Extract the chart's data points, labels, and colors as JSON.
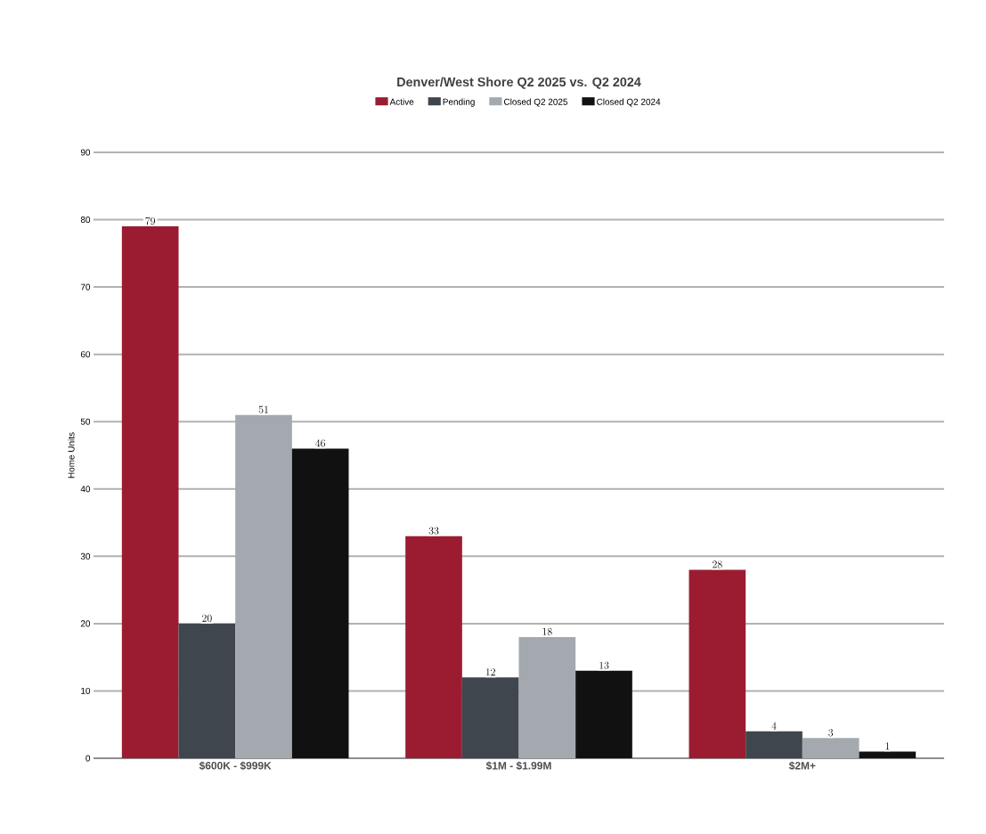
{
  "chart_data": {
    "type": "bar",
    "title": "Denver/West Shore Q2 2025 vs. Q2 2024",
    "ylabel": "Home Units",
    "categories": [
      "$600K - $999K",
      "$1M - $1.99M",
      "$2M+"
    ],
    "series": [
      {
        "name": "Active",
        "color": "#9b1c31",
        "values": [
          79,
          33,
          28
        ]
      },
      {
        "name": "Pending",
        "color": "#3f464d",
        "values": [
          20,
          12,
          4
        ]
      },
      {
        "name": "Closed Q2 2025",
        "color": "#a3a9ae",
        "values": [
          51,
          18,
          3
        ]
      },
      {
        "name": "Closed Q2 2024",
        "color": "#111111",
        "values": [
          46,
          13,
          1
        ]
      }
    ],
    "ylim": [
      0,
      90
    ],
    "yticks": [
      0,
      10,
      20,
      30,
      40,
      50,
      60,
      70,
      80,
      90
    ],
    "grid": "y",
    "legend": "top",
    "data_labels": true
  }
}
